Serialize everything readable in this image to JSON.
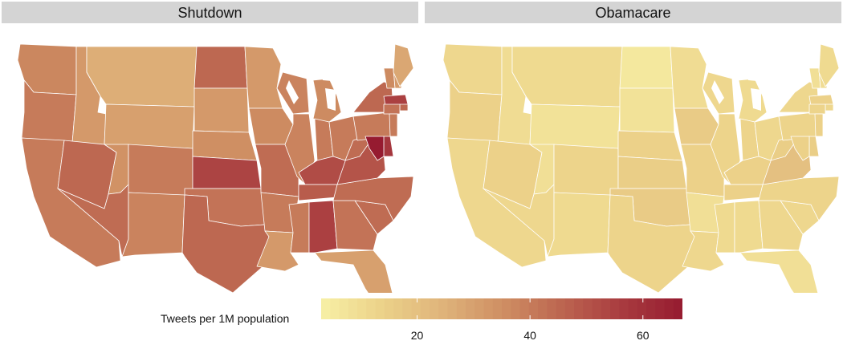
{
  "panels": [
    {
      "title": "Shutdown"
    },
    {
      "title": "Obamacare"
    }
  ],
  "legend": {
    "title": "Tweets per 1M population",
    "min": 3,
    "max": 67,
    "ticks": [
      20,
      40,
      60
    ],
    "colors": [
      "#f7f0a6",
      "#ecd289",
      "#dfb47b",
      "#cf8f63",
      "#bc6550",
      "#a83b3f",
      "#961b30"
    ]
  },
  "colors": {
    "state_border": "#ffffff",
    "strip_bg": "#d4d4d4"
  },
  "map_data": {
    "states": [
      "WA",
      "OR",
      "CA",
      "ID",
      "NV",
      "MT",
      "WY",
      "UT",
      "AZ",
      "CO",
      "NM",
      "ND",
      "SD",
      "NE",
      "KS",
      "OK",
      "TX",
      "MN",
      "IA",
      "MO",
      "AR",
      "LA",
      "WI",
      "IL",
      "MI",
      "IN",
      "OH",
      "KY",
      "TN",
      "MS",
      "AL",
      "GA",
      "FL",
      "SC",
      "NC",
      "VA",
      "WV",
      "PA",
      "NY",
      "VT",
      "NH",
      "ME",
      "MA",
      "RI",
      "CT",
      "NJ",
      "DE",
      "MD"
    ],
    "shutdown": {
      "WA": 37,
      "OR": 40,
      "CA": 40,
      "ID": 32,
      "NV": 45,
      "MT": 26,
      "WY": 30,
      "UT": 34,
      "AZ": 44,
      "CO": 40,
      "NM": 38,
      "ND": 45,
      "SD": 32,
      "NE": 35,
      "KS": 54,
      "OK": 42,
      "TX": 45,
      "MN": 32,
      "IA": 36,
      "MO": 44,
      "AR": 40,
      "LA": 32,
      "WI": 38,
      "IL": 38,
      "MI": 36,
      "IN": 40,
      "OH": 40,
      "KY": 52,
      "TN": 48,
      "MS": 40,
      "AL": 55,
      "GA": 42,
      "FL": 30,
      "SC": 44,
      "NC": 44,
      "VA": 50,
      "WV": 44,
      "PA": 40,
      "NY": 45,
      "VT": 36,
      "NH": 32,
      "ME": 28,
      "MA": 55,
      "RI": 45,
      "CT": 42,
      "NJ": 40,
      "DE": 58,
      "MD": 67
    },
    "obamacare": {
      "WA": 12,
      "OR": 14,
      "CA": 12,
      "ID": 10,
      "NV": 14,
      "MT": 11,
      "WY": 8,
      "UT": 9,
      "AZ": 12,
      "CO": 13,
      "NM": 11,
      "ND": 6,
      "SD": 8,
      "NE": 14,
      "KS": 15,
      "OK": 16,
      "TX": 13,
      "MN": 10,
      "IA": 16,
      "MO": 14,
      "AR": 9,
      "LA": 12,
      "WI": 12,
      "IL": 13,
      "MI": 11,
      "IN": 13,
      "OH": 12,
      "KY": 14,
      "TN": 14,
      "MS": 11,
      "AL": 11,
      "GA": 12,
      "FL": 9,
      "SC": 12,
      "NC": 13,
      "VA": 20,
      "WV": 15,
      "PA": 13,
      "NY": 12,
      "VT": 9,
      "NH": 10,
      "ME": 11,
      "MA": 14,
      "RI": 12,
      "CT": 13,
      "NJ": 14,
      "DE": 15,
      "MD": 14
    }
  }
}
